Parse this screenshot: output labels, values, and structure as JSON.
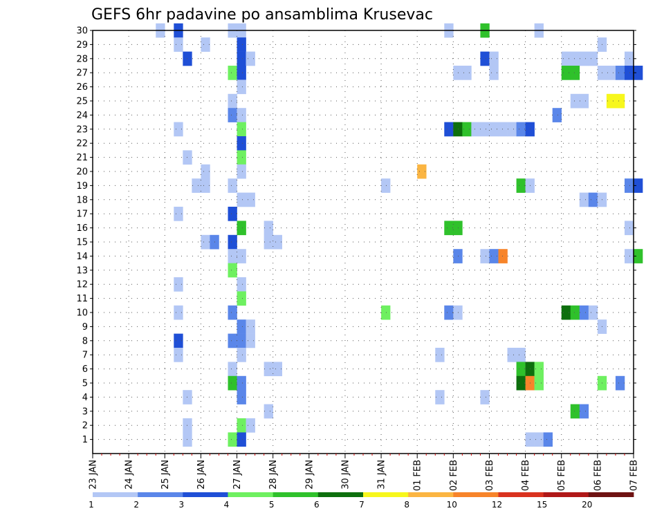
{
  "chart_data": {
    "type": "heatmap",
    "title": "GEFS 6hr padavine po ansamblima Krusevac",
    "xlabel": "",
    "ylabel": "",
    "x_ticks": [
      "23 JAN",
      "24 JAN",
      "25 JAN",
      "26 JAN",
      "27 JAN",
      "28 JAN",
      "29 JAN",
      "30 JAN",
      "31 JAN",
      "01 FEB",
      "02 FEB",
      "03 FEB",
      "04 FEB",
      "05 FEB",
      "06 FEB",
      "07 FEB"
    ],
    "y_ticks": [
      "1",
      "2",
      "3",
      "4",
      "5",
      "6",
      "7",
      "8",
      "9",
      "10",
      "11",
      "12",
      "13",
      "14",
      "15",
      "16",
      "17",
      "18",
      "19",
      "20",
      "21",
      "22",
      "23",
      "24",
      "25",
      "26",
      "27",
      "28",
      "29",
      "30"
    ],
    "xlim": [
      "23 JAN 00h",
      "07 FEB 00h"
    ],
    "ylim": [
      0,
      30
    ],
    "grid": true,
    "colorbar": {
      "labels": [
        "1",
        "2",
        "3",
        "4",
        "5",
        "6",
        "7",
        "8",
        "10",
        "12",
        "15",
        "20"
      ],
      "colors": [
        "#b3c7f5",
        "#5a86e9",
        "#1f4fd6",
        "#6ef060",
        "#2fc12b",
        "#0d6f0d",
        "#f7f71c",
        "#fbb542",
        "#f7842a",
        "#d9321f",
        "#b01818",
        "#6e1212"
      ]
    },
    "x_unit": "6-hour step from 23 JAN 00h",
    "cells": [
      [
        7,
        30,
        1
      ],
      [
        9,
        30,
        3
      ],
      [
        15,
        30,
        1
      ],
      [
        16,
        30,
        1
      ],
      [
        39,
        30,
        1
      ],
      [
        43,
        30,
        5
      ],
      [
        49,
        30,
        1
      ],
      [
        9,
        29,
        1
      ],
      [
        12,
        29,
        1
      ],
      [
        16,
        29,
        3
      ],
      [
        56,
        29,
        1
      ],
      [
        10,
        28,
        3
      ],
      [
        16,
        28,
        3
      ],
      [
        17,
        28,
        1
      ],
      [
        43,
        28,
        3
      ],
      [
        44,
        28,
        1
      ],
      [
        52,
        28,
        1
      ],
      [
        53,
        28,
        1
      ],
      [
        54,
        28,
        1
      ],
      [
        55,
        28,
        1
      ],
      [
        59,
        28,
        1
      ],
      [
        15,
        27,
        4
      ],
      [
        16,
        27,
        3
      ],
      [
        40,
        27,
        1
      ],
      [
        41,
        27,
        1
      ],
      [
        44,
        27,
        1
      ],
      [
        52,
        27,
        5
      ],
      [
        53,
        27,
        5
      ],
      [
        56,
        27,
        1
      ],
      [
        57,
        27,
        1
      ],
      [
        58,
        27,
        2
      ],
      [
        59,
        27,
        3
      ],
      [
        60,
        27,
        3
      ],
      [
        16,
        26,
        1
      ],
      [
        15,
        25,
        1
      ],
      [
        53,
        25,
        1
      ],
      [
        54,
        25,
        1
      ],
      [
        57,
        25,
        7
      ],
      [
        58,
        25,
        7
      ],
      [
        15,
        24,
        2
      ],
      [
        16,
        24,
        1
      ],
      [
        51,
        24,
        2
      ],
      [
        9,
        23,
        1
      ],
      [
        16,
        23,
        4
      ],
      [
        39,
        23,
        3
      ],
      [
        40,
        23,
        6
      ],
      [
        41,
        23,
        5
      ],
      [
        42,
        23,
        1
      ],
      [
        43,
        23,
        1
      ],
      [
        44,
        23,
        1
      ],
      [
        45,
        23,
        1
      ],
      [
        46,
        23,
        1
      ],
      [
        47,
        23,
        2
      ],
      [
        48,
        23,
        3
      ],
      [
        16,
        22,
        3
      ],
      [
        10,
        21,
        1
      ],
      [
        16,
        21,
        4
      ],
      [
        12,
        20,
        1
      ],
      [
        16,
        20,
        1
      ],
      [
        36,
        20,
        8
      ],
      [
        11,
        19,
        1
      ],
      [
        12,
        19,
        1
      ],
      [
        15,
        19,
        1
      ],
      [
        32,
        19,
        1
      ],
      [
        47,
        19,
        5
      ],
      [
        48,
        19,
        1
      ],
      [
        59,
        19,
        2
      ],
      [
        60,
        19,
        3
      ],
      [
        16,
        18,
        1
      ],
      [
        17,
        18,
        1
      ],
      [
        54,
        18,
        1
      ],
      [
        55,
        18,
        2
      ],
      [
        56,
        18,
        1
      ],
      [
        9,
        17,
        1
      ],
      [
        15,
        17,
        3
      ],
      [
        16,
        16,
        5
      ],
      [
        19,
        16,
        1
      ],
      [
        39,
        16,
        5
      ],
      [
        40,
        16,
        5
      ],
      [
        59,
        16,
        1
      ],
      [
        12,
        15,
        1
      ],
      [
        13,
        15,
        2
      ],
      [
        15,
        15,
        3
      ],
      [
        19,
        15,
        1
      ],
      [
        20,
        15,
        1
      ],
      [
        15,
        14,
        1
      ],
      [
        16,
        14,
        1
      ],
      [
        40,
        14,
        2
      ],
      [
        43,
        14,
        1
      ],
      [
        44,
        14,
        2
      ],
      [
        45,
        14,
        9
      ],
      [
        59,
        14,
        1
      ],
      [
        60,
        14,
        5
      ],
      [
        15,
        13,
        4
      ],
      [
        9,
        12,
        1
      ],
      [
        16,
        12,
        1
      ],
      [
        16,
        11,
        4
      ],
      [
        9,
        10,
        1
      ],
      [
        15,
        10,
        2
      ],
      [
        32,
        10,
        4
      ],
      [
        39,
        10,
        2
      ],
      [
        40,
        10,
        1
      ],
      [
        52,
        10,
        6
      ],
      [
        53,
        10,
        5
      ],
      [
        54,
        10,
        2
      ],
      [
        55,
        10,
        1
      ],
      [
        16,
        9,
        2
      ],
      [
        17,
        9,
        1
      ],
      [
        56,
        9,
        1
      ],
      [
        9,
        8,
        3
      ],
      [
        15,
        8,
        2
      ],
      [
        16,
        8,
        2
      ],
      [
        17,
        8,
        1
      ],
      [
        9,
        7,
        1
      ],
      [
        16,
        7,
        1
      ],
      [
        38,
        7,
        1
      ],
      [
        46,
        7,
        1
      ],
      [
        47,
        7,
        1
      ],
      [
        15,
        6,
        1
      ],
      [
        19,
        6,
        1
      ],
      [
        20,
        6,
        1
      ],
      [
        47,
        6,
        5
      ],
      [
        48,
        6,
        6
      ],
      [
        49,
        6,
        4
      ],
      [
        15,
        5,
        5
      ],
      [
        16,
        5,
        2
      ],
      [
        47,
        5,
        6
      ],
      [
        48,
        5,
        9
      ],
      [
        49,
        5,
        4
      ],
      [
        56,
        5,
        4
      ],
      [
        58,
        5,
        2
      ],
      [
        10,
        4,
        1
      ],
      [
        16,
        4,
        2
      ],
      [
        38,
        4,
        1
      ],
      [
        43,
        4,
        1
      ],
      [
        19,
        3,
        1
      ],
      [
        53,
        3,
        5
      ],
      [
        54,
        3,
        2
      ],
      [
        10,
        2,
        1
      ],
      [
        16,
        2,
        4
      ],
      [
        17,
        2,
        1
      ],
      [
        10,
        1,
        1
      ],
      [
        15,
        1,
        4
      ],
      [
        16,
        1,
        3
      ],
      [
        48,
        1,
        1
      ],
      [
        49,
        1,
        1
      ],
      [
        50,
        1,
        2
      ]
    ]
  }
}
